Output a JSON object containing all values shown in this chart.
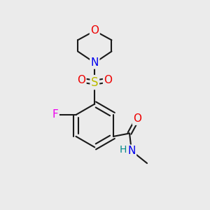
{
  "background_color": "#ebebeb",
  "bond_color": "#1a1a1a",
  "bond_width": 1.5,
  "atom_colors": {
    "C": "#1a1a1a",
    "N": "#0000ee",
    "O": "#ee0000",
    "S": "#bbbb00",
    "F": "#ee00ee",
    "H": "#008888"
  },
  "font_size": 10,
  "fig_size": [
    3.0,
    3.0
  ],
  "dpi": 100
}
